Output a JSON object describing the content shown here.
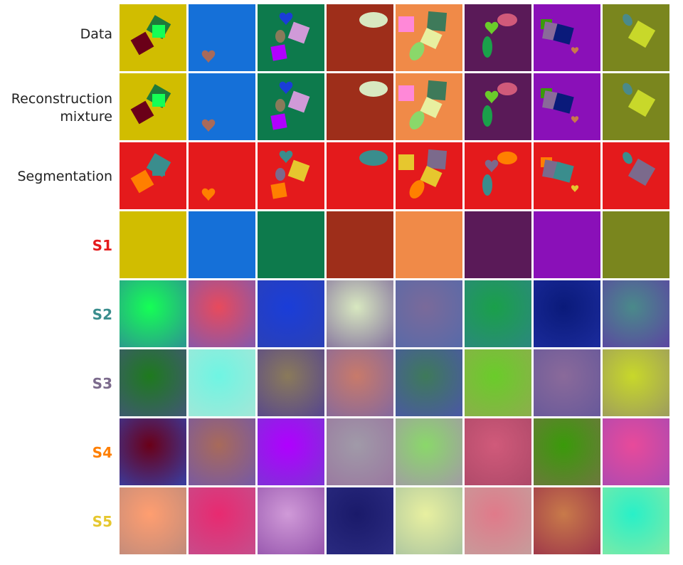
{
  "rows": [
    {
      "id": "data",
      "label_lines": [
        "Data"
      ]
    },
    {
      "id": "recon",
      "label_lines": [
        "Reconstruction",
        "mixture"
      ]
    },
    {
      "id": "seg",
      "label_lines": [
        "Segmentation"
      ]
    },
    {
      "id": "s1",
      "label_lines": [
        "S1"
      ],
      "slot": true,
      "color": "#e41a1c"
    },
    {
      "id": "s2",
      "label_lines": [
        "S2"
      ],
      "slot": true,
      "color": "#3a8d8d"
    },
    {
      "id": "s3",
      "label_lines": [
        "S3"
      ],
      "slot": true,
      "color": "#7b6a8c"
    },
    {
      "id": "s4",
      "label_lines": [
        "S4"
      ],
      "slot": true,
      "color": "#ff7f00"
    },
    {
      "id": "s5",
      "label_lines": [
        "S5"
      ],
      "slot": true,
      "color": "#e6c72e"
    }
  ],
  "segmentation_background_color": "#e41a1c",
  "columns": [
    {
      "bg": "#d1bd00",
      "slot_gradients": {
        "s2": [
          "#15ff55",
          "#2b9b8c"
        ],
        "s3": [
          "#1e7a1e",
          "#3e5a6e"
        ],
        "s4": [
          "#6a0018",
          "#3c3a9a"
        ],
        "s5": [
          "#ff9e70",
          "#c58c7a"
        ]
      }
    },
    {
      "bg": "#1570d8",
      "slot_gradients": {
        "s2": [
          "#e84a5c",
          "#8a58a8"
        ],
        "s3": [
          "#6ff5e3",
          "#9fe8d8"
        ],
        "s4": [
          "#a86a5a",
          "#7a5aa0"
        ],
        "s5": [
          "#e82a70",
          "#c84b8a"
        ]
      }
    },
    {
      "bg": "#0d7a4c",
      "slot_gradients": {
        "s2": [
          "#1a3dd8",
          "#2a40b8"
        ],
        "s3": [
          "#8a7a5a",
          "#5a4a8a"
        ],
        "s4": [
          "#b000ff",
          "#8030d8"
        ],
        "s5": [
          "#d09ad8",
          "#9a5ab0"
        ]
      }
    },
    {
      "bg": "#9e2e1a",
      "slot_gradients": {
        "s2": [
          "#d8e8c0",
          "#8a7aa0"
        ],
        "s3": [
          "#c87a6a",
          "#8a6a9a"
        ],
        "s4": [
          "#a09aa8",
          "#9a7aa0"
        ],
        "s5": [
          "#1a1a6a",
          "#2a2a80"
        ]
      }
    },
    {
      "bg": "#f08a48",
      "slot_gradients": {
        "s2": [
          "#7a6a9a",
          "#5a6aa8"
        ],
        "s3": [
          "#3e7a5a",
          "#4a5aa0"
        ],
        "s4": [
          "#8ad86a",
          "#a0a0a0"
        ],
        "s5": [
          "#e8f0a0",
          "#b0c8a0"
        ]
      }
    },
    {
      "bg": "#5a1a58",
      "slot_gradients": {
        "s2": [
          "#1aa04a",
          "#2a8a7a"
        ],
        "s3": [
          "#6acc2a",
          "#8ab04a"
        ],
        "s4": [
          "#d05a7a",
          "#b04a6a"
        ],
        "s5": [
          "#e07a8a",
          "#c89a9a"
        ]
      }
    },
    {
      "bg": "#8a10b8",
      "slot_gradients": {
        "s2": [
          "#0a1a7a",
          "#1a2a9a"
        ],
        "s3": [
          "#8a6a9a",
          "#6a5a9a"
        ],
        "s4": [
          "#3a9a0a",
          "#6a7a3a"
        ],
        "s5": [
          "#c87a4a",
          "#a03a4a"
        ]
      }
    },
    {
      "bg": "#7a861e",
      "slot_gradients": {
        "s2": [
          "#4a8a8a",
          "#5a4aa0"
        ],
        "s3": [
          "#c8d82a",
          "#a0a05a"
        ],
        "s4": [
          "#e84a9a",
          "#b04ab0"
        ],
        "s5": [
          "#28f0c8",
          "#7aeaa8"
        ]
      }
    }
  ]
}
